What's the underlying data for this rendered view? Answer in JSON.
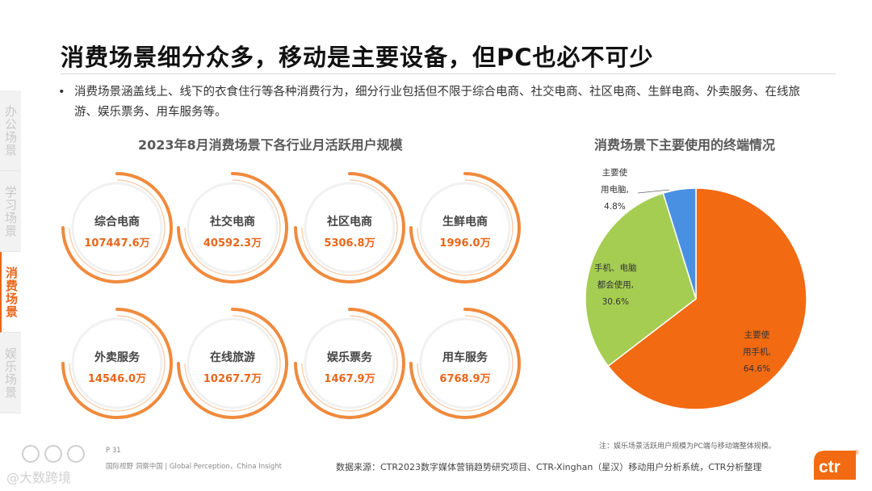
{
  "sidebar": {
    "tabs": [
      {
        "label": "办公场景"
      },
      {
        "label": "学习场景"
      },
      {
        "label": "消费场景"
      },
      {
        "label": "娱乐场景"
      }
    ]
  },
  "page": {
    "title": "消费场景细分众多，移动是主要设备，但PC也必不可少",
    "bullet": "消费场景涵盖线上、线下的衣食住行等各种消费行为，细分行业包括但不限于综合电商、社交电商、社区电商、生鲜电商、外卖服务、在线旅游、娱乐票务、用车服务等。",
    "bullet_symbol": "•"
  },
  "left_section": {
    "title": "2023年8月消费场景下各行业月活跃用户规模",
    "tiles": [
      {
        "name": "综合电商",
        "value": "107447.6万"
      },
      {
        "name": "社交电商",
        "value": "40592.3万"
      },
      {
        "name": "社区电商",
        "value": "5306.8万"
      },
      {
        "name": "生鲜电商",
        "value": "1996.0万"
      },
      {
        "name": "外卖服务",
        "value": "14546.0万"
      },
      {
        "name": "在线旅游",
        "value": "10267.7万"
      },
      {
        "name": "娱乐票务",
        "value": "1467.9万"
      },
      {
        "name": "用车服务",
        "value": "6768.9万"
      }
    ]
  },
  "chart_data": {
    "type": "pie",
    "title": "消费场景下主要使用的终端情况",
    "slices": [
      {
        "label": "主要使用手机",
        "value": 64.6,
        "label_lines": [
          "主要使",
          "用手机,",
          "64.6%"
        ],
        "color": "#f26a12"
      },
      {
        "label": "手机、电脑都会使用",
        "value": 30.6,
        "label_lines": [
          "手机、电脑",
          "都会使用,",
          "30.6%"
        ],
        "color": "#a5cd52"
      },
      {
        "label": "主要使用电脑",
        "value": 4.8,
        "label_lines": [
          "主要使",
          "用电脑,",
          "4.8%"
        ],
        "color": "#4a90e2"
      }
    ],
    "note": "注：娱乐场景活跃用户规模为PC端与移动端整体规模。"
  },
  "footer": {
    "page_number": "P 31",
    "tagline": "国际视野  洞察中国 | Global Perception，China Insight",
    "source": "数据来源：CTR2023数字媒体营销趋势研究项目、CTR-Xinghan（星汉）移动用户分析系统，CTR分析整理",
    "logo_text": "ctr",
    "logo_mark": "®",
    "watermark": "@大数跨境"
  },
  "colors": {
    "accent": "#e8661a",
    "arc": "#f08a3c",
    "phone": "#f26a12",
    "both": "#a5cd52",
    "pc": "#4a90e2"
  }
}
